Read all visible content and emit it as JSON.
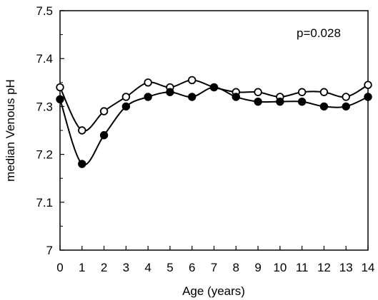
{
  "chart_data": {
    "type": "line",
    "title": "",
    "xlabel": "Age (years)",
    "ylabel": "median Venous pH",
    "xlim": [
      0,
      14
    ],
    "ylim": [
      7.0,
      7.5
    ],
    "x": [
      0,
      1,
      2,
      3,
      4,
      5,
      6,
      7,
      8,
      9,
      10,
      11,
      12,
      13,
      14
    ],
    "x_tick_labels": [
      "0",
      "1",
      "2",
      "3",
      "4",
      "5",
      "6",
      "7",
      "8",
      "9",
      "10",
      "11",
      "12",
      "13",
      "14"
    ],
    "y_ticks": [
      7.0,
      7.1,
      7.2,
      7.3,
      7.4,
      7.5
    ],
    "y_tick_labels": [
      "7",
      "7.1",
      "7.2",
      "7.3",
      "7.4",
      "7.5"
    ],
    "grid": false,
    "legend": "none",
    "annotation": "p=0.028",
    "series": [
      {
        "marker": "open-circle",
        "color": "#000000",
        "values": [
          7.34,
          7.25,
          7.29,
          7.32,
          7.35,
          7.34,
          7.355,
          7.34,
          7.33,
          7.33,
          7.32,
          7.33,
          7.33,
          7.32,
          7.345
        ]
      },
      {
        "marker": "filled-circle",
        "color": "#000000",
        "values": [
          7.315,
          7.18,
          7.24,
          7.3,
          7.32,
          7.33,
          7.32,
          7.34,
          7.32,
          7.31,
          7.31,
          7.31,
          7.3,
          7.3,
          7.32
        ]
      }
    ]
  }
}
